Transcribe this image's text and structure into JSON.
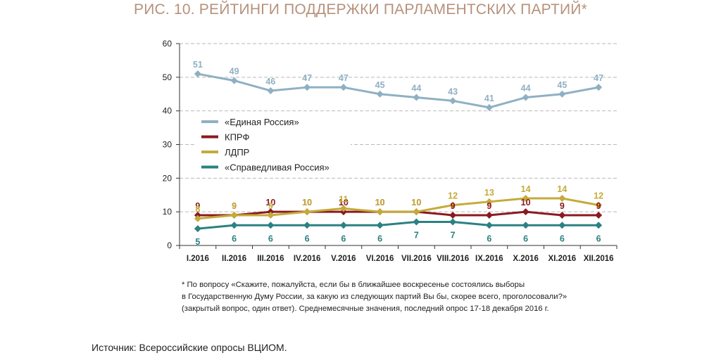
{
  "title": "РИС. 10. РЕЙТИНГИ ПОДДЕРЖКИ ПАРЛАМЕНТСКИХ ПАРТИЙ*",
  "note_lines": [
    "* По вопросу «Скажите, пожалуйста, если бы в ближайшее воскресенье состоялись выборы",
    "в Государственную Думу России, за какую из следующих партий Вы бы, скорее всего, проголосовали?»",
    "(закрытый вопрос, один ответ). Среднемесячные значения, последний опрос 17-18 декабря 2016 г."
  ],
  "source": "Источник: Всероссийские опросы ВЦИОМ.",
  "chart_data": {
    "type": "line",
    "title": "РИС. 10. РЕЙТИНГИ ПОДДЕРЖКИ ПАРЛАМЕНТСКИХ ПАРТИЙ*",
    "xlabel": "",
    "ylabel": "",
    "categories": [
      "I.2016",
      "II.2016",
      "III.2016",
      "IV.2016",
      "V.2016",
      "VI.2016",
      "VII.2016",
      "VIII.2016",
      "IX.2016",
      "X.2016",
      "XI.2016",
      "XII.2016"
    ],
    "ylim": [
      0,
      60
    ],
    "yticks": [
      0,
      10,
      20,
      30,
      40,
      50,
      60
    ],
    "grid": "horizontal-dashed",
    "legend": "left",
    "series": [
      {
        "name": "«Единая Россия»",
        "color": "#8fb0c3",
        "label_pos": "above",
        "values": [
          51,
          49,
          46,
          47,
          47,
          45,
          44,
          43,
          41,
          44,
          45,
          47
        ]
      },
      {
        "name": "КПРФ",
        "color": "#8a1a1f",
        "label_pos": "above",
        "values": [
          9,
          9,
          10,
          10,
          10,
          10,
          10,
          9,
          9,
          10,
          9,
          9
        ]
      },
      {
        "name": "ЛДПР",
        "color": "#c5aa3a",
        "label_pos": "above",
        "values": [
          8,
          9,
          9,
          10,
          11,
          10,
          10,
          12,
          13,
          14,
          14,
          12
        ]
      },
      {
        "name": "«Справедливая Россия»",
        "color": "#2b8183",
        "label_pos": "below",
        "values": [
          5,
          6,
          6,
          6,
          6,
          6,
          7,
          7,
          6,
          6,
          6,
          6
        ]
      }
    ]
  }
}
